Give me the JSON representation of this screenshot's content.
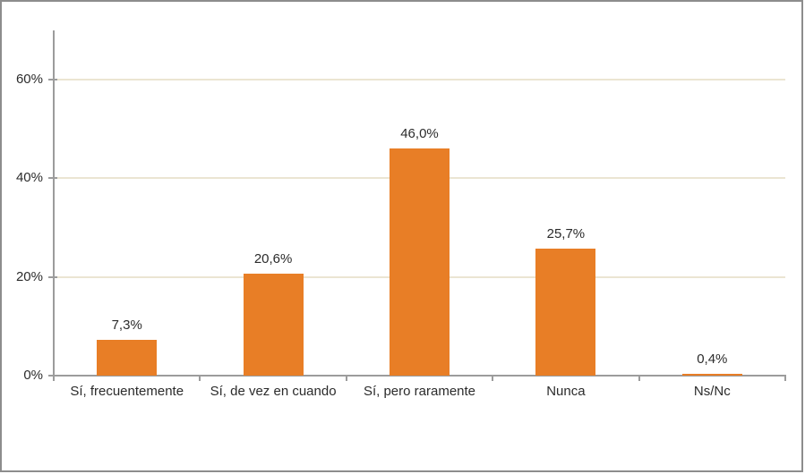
{
  "chart": {
    "background_color": "#FFFFFF",
    "border_color": "#8D8D8D"
  },
  "chart_data": {
    "type": "bar",
    "title": "",
    "xlabel": "",
    "ylabel": "",
    "categories": [
      "Sí, frecuentemente",
      "Sí, de vez en cuando",
      "Sí, pero raramente",
      "Nunca",
      "Ns/Nc"
    ],
    "values": [
      7.3,
      20.6,
      46.0,
      25.7,
      0.4
    ],
    "value_labels": [
      "7,3%",
      "20,6%",
      "46,0%",
      "25,7%",
      "0,4%"
    ],
    "ylim": [
      0,
      70
    ],
    "yticks": [
      {
        "value": 0,
        "label": "0%"
      },
      {
        "value": 20,
        "label": "20%"
      },
      {
        "value": 40,
        "label": "40%"
      },
      {
        "value": 60,
        "label": "60%"
      }
    ],
    "grid": true,
    "legend": false,
    "bar_color": "#E87E26",
    "gridline_color": "#EBE5D2",
    "axis_color": "#9C9C9C",
    "label_color": "#2B2B2B"
  }
}
